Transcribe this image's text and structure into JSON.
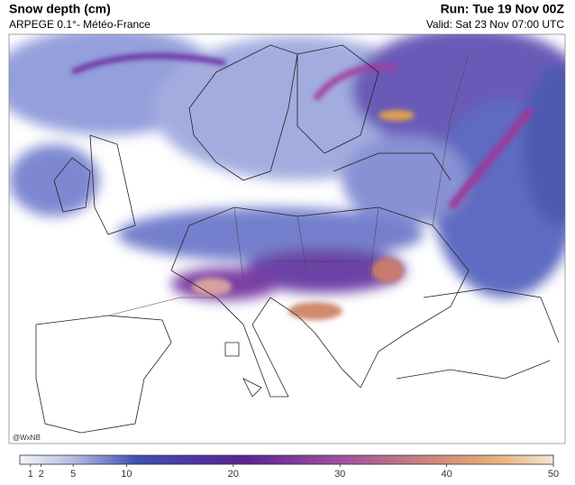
{
  "header": {
    "title": "Snow depth (cm)",
    "subtitle": "ARPEGE 0.1°- Météo-France",
    "run": "Run: Tue 19 Nov 00Z",
    "valid": "Valid: Sat 23 Nov 07:00 UTC"
  },
  "map": {
    "credit": "@WxNB"
  },
  "colorbar": {
    "range": [
      0,
      50
    ],
    "ticks": [
      1,
      2,
      5,
      10,
      20,
      30,
      40,
      50
    ]
  }
}
